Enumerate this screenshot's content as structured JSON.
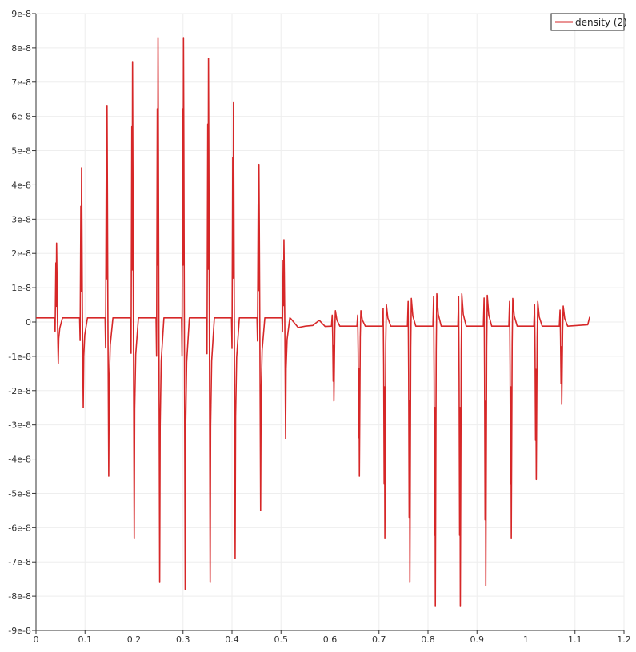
{
  "chart_data": {
    "type": "line",
    "xlim": [
      0,
      1.2
    ],
    "ylim": [
      -9e-08,
      9e-08
    ],
    "x_ticks": [
      0,
      0.1,
      0.2,
      0.3,
      0.4,
      0.5,
      0.6,
      0.7,
      0.8,
      0.9,
      1,
      1.1,
      1.2
    ],
    "x_tick_labels": [
      "0",
      "0.1",
      "0.2",
      "0.3",
      "0.4",
      "0.5",
      "0.6",
      "0.7",
      "0.8",
      "0.9",
      "1",
      "1.1",
      "1.2"
    ],
    "y_ticks": [
      9e-08,
      8e-08,
      7e-08,
      6e-08,
      5e-08,
      4e-08,
      3e-08,
      2e-08,
      1e-08,
      0,
      -1e-08,
      -2e-08,
      -3e-08,
      -4e-08,
      -5e-08,
      -6e-08,
      -7e-08,
      -8e-08,
      -9e-08
    ],
    "y_tick_labels": [
      "9e-8",
      "8e-8",
      "7e-8",
      "6e-8",
      "5e-8",
      "4e-8",
      "3e-8",
      "2e-8",
      "1e-8",
      "0",
      "-1e-8",
      "-2e-8",
      "-3e-8",
      "-4e-8",
      "-5e-8",
      "-6e-8",
      "-7e-8",
      "-8e-8",
      "-9e-8"
    ],
    "grid": true,
    "legend_position": "top-right",
    "series": [
      {
        "name": "density (2)",
        "color": "#d62728",
        "x_start": 0.0,
        "x_end": 1.13,
        "peaks": [
          {
            "x": 0.042,
            "max": 2.3e-08,
            "min": -1.2e-08
          },
          {
            "x": 0.093,
            "max": 4.5e-08,
            "min": -2.5e-08
          },
          {
            "x": 0.145,
            "max": 6.3e-08,
            "min": -4.5e-08
          },
          {
            "x": 0.197,
            "max": 7.6e-08,
            "min": -6.3e-08
          },
          {
            "x": 0.249,
            "max": 8.3e-08,
            "min": -7.6e-08
          },
          {
            "x": 0.301,
            "max": 8.3e-08,
            "min": -7.8e-08
          },
          {
            "x": 0.352,
            "max": 7.7e-08,
            "min": -7.6e-08
          },
          {
            "x": 0.403,
            "max": 6.4e-08,
            "min": -6.9e-08
          },
          {
            "x": 0.455,
            "max": 4.6e-08,
            "min": -5.5e-08
          },
          {
            "x": 0.506,
            "max": 2.4e-08,
            "min": -3.4e-08
          },
          {
            "x": 0.608,
            "max": 2e-09,
            "min": -2.3e-08
          },
          {
            "x": 0.66,
            "max": 2e-09,
            "min": -4.5e-08
          },
          {
            "x": 0.712,
            "max": 4e-09,
            "min": -6.3e-08
          },
          {
            "x": 0.763,
            "max": 6e-09,
            "min": -7.6e-08
          },
          {
            "x": 0.815,
            "max": 7.5e-09,
            "min": -8.3e-08
          },
          {
            "x": 0.866,
            "max": 7.5e-09,
            "min": -8.3e-08
          },
          {
            "x": 0.918,
            "max": 7e-09,
            "min": -7.7e-08
          },
          {
            "x": 0.97,
            "max": 6e-09,
            "min": -6.3e-08
          },
          {
            "x": 1.021,
            "max": 5e-09,
            "min": -4.6e-08
          },
          {
            "x": 1.073,
            "max": 3.5e-09,
            "min": -2.4e-08
          }
        ]
      }
    ]
  }
}
